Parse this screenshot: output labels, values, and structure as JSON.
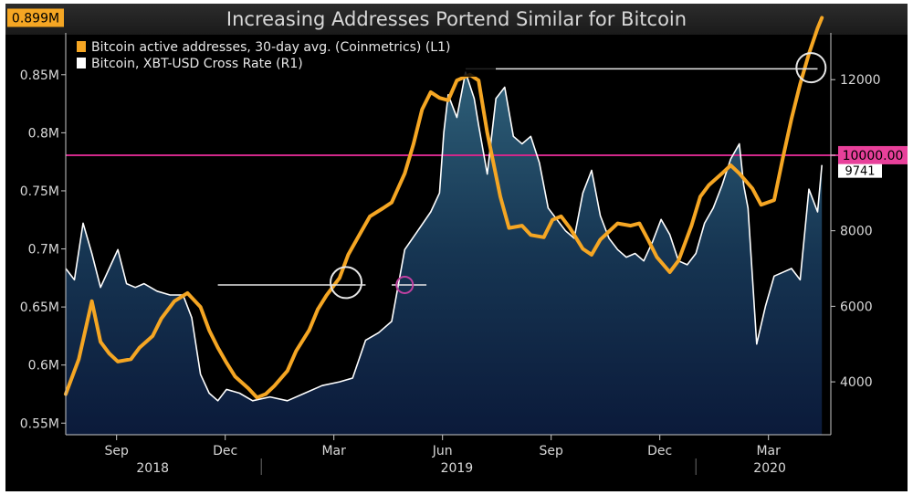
{
  "title": "Increasing Addresses Portend Similar for Bitcoin",
  "chart_data": {
    "type": "line",
    "title": "Increasing Addresses Portend Similar for Bitcoin",
    "x_range": [
      2018.55,
      2020.3
    ],
    "x_ticks": [
      {
        "label": "Sep",
        "x": 2018.667
      },
      {
        "label": "Dec",
        "x": 2018.917
      },
      {
        "label": "Mar",
        "x": 2019.167
      },
      {
        "label": "Jun",
        "x": 2019.417
      },
      {
        "label": "Sep",
        "x": 2019.667
      },
      {
        "label": "Dec",
        "x": 2019.917
      },
      {
        "label": "Mar",
        "x": 2020.167
      }
    ],
    "years": [
      {
        "label": "2018",
        "x": 2018.75
      },
      {
        "label": "2019",
        "x": 2019.45
      },
      {
        "label": "2020",
        "x": 2020.17
      }
    ],
    "left_axis": {
      "range": [
        0.54,
        0.875
      ],
      "ticks": [
        {
          "v": 0.55,
          "label": "0.55M"
        },
        {
          "v": 0.6,
          "label": "0.6M"
        },
        {
          "v": 0.65,
          "label": "0.65M"
        },
        {
          "v": 0.7,
          "label": "0.7M"
        },
        {
          "v": 0.75,
          "label": "0.75M"
        },
        {
          "v": 0.8,
          "label": "0.8M"
        },
        {
          "v": 0.85,
          "label": "0.85M"
        }
      ]
    },
    "right_axis": {
      "range": [
        2600,
        12900
      ],
      "ticks": [
        {
          "v": 4000,
          "label": "4000"
        },
        {
          "v": 6000,
          "label": "6000"
        },
        {
          "v": 8000,
          "label": "8000"
        },
        {
          "v": 10000,
          "label": "10000"
        },
        {
          "v": 12000,
          "label": "12000"
        }
      ]
    },
    "legend": [
      {
        "label": "Bitcoin active addresses, 30-day avg. (Coinmetrics) (L1)",
        "color": "#f5a623"
      },
      {
        "label": "Bitcoin, XBT-USD Cross Rate  (R1)",
        "color": "#ffffff"
      }
    ],
    "last_value_label": "0.899M",
    "reference_label": "10000.00",
    "price_last_label": "9741",
    "reference_value": 10000,
    "series": [
      {
        "name": "Bitcoin active addresses, 30-day avg. (Coinmetrics) (L1)",
        "axis": "left",
        "color": "#f5a623",
        "x": [
          2018.55,
          2018.58,
          2018.61,
          2018.63,
          2018.65,
          2018.67,
          2018.7,
          2018.72,
          2018.75,
          2018.77,
          2018.8,
          2018.83,
          2018.86,
          2018.88,
          2018.9,
          2018.92,
          2018.94,
          2018.97,
          2018.99,
          2019.01,
          2019.03,
          2019.06,
          2019.08,
          2019.11,
          2019.13,
          2019.15,
          2019.18,
          2019.2,
          2019.23,
          2019.25,
          2019.28,
          2019.3,
          2019.33,
          2019.35,
          2019.37,
          2019.39,
          2019.41,
          2019.43,
          2019.45,
          2019.48,
          2019.5,
          2019.52,
          2019.55,
          2019.57,
          2019.6,
          2019.62,
          2019.65,
          2019.67,
          2019.69,
          2019.71,
          2019.74,
          2019.76,
          2019.78,
          2019.8,
          2019.82,
          2019.85,
          2019.87,
          2019.89,
          2019.91,
          2019.94,
          2019.96,
          2019.99,
          2020.01,
          2020.03,
          2020.06,
          2020.08,
          2020.1,
          2020.13,
          2020.15,
          2020.18,
          2020.2,
          2020.22,
          2020.24,
          2020.26,
          2020.28,
          2020.29
        ],
        "values": [
          0.575,
          0.605,
          0.655,
          0.62,
          0.61,
          0.603,
          0.605,
          0.615,
          0.625,
          0.64,
          0.655,
          0.662,
          0.65,
          0.63,
          0.615,
          0.602,
          0.59,
          0.58,
          0.572,
          0.575,
          0.582,
          0.595,
          0.612,
          0.63,
          0.648,
          0.66,
          0.675,
          0.695,
          0.715,
          0.728,
          0.735,
          0.74,
          0.765,
          0.79,
          0.82,
          0.835,
          0.83,
          0.828,
          0.845,
          0.85,
          0.845,
          0.8,
          0.745,
          0.718,
          0.72,
          0.712,
          0.71,
          0.725,
          0.728,
          0.718,
          0.7,
          0.695,
          0.708,
          0.715,
          0.722,
          0.72,
          0.722,
          0.708,
          0.693,
          0.68,
          0.69,
          0.72,
          0.745,
          0.755,
          0.765,
          0.772,
          0.765,
          0.752,
          0.738,
          0.742,
          0.778,
          0.812,
          0.842,
          0.868,
          0.89,
          0.899
        ]
      },
      {
        "name": "Bitcoin, XBT-USD Cross Rate  (R1)",
        "axis": "right",
        "color": "#ffffff",
        "x": [
          2018.55,
          2018.57,
          2018.59,
          2018.61,
          2018.63,
          2018.65,
          2018.67,
          2018.69,
          2018.71,
          2018.73,
          2018.76,
          2018.79,
          2018.82,
          2018.84,
          2018.86,
          2018.88,
          2018.9,
          2018.92,
          2018.95,
          2018.98,
          2019.02,
          2019.06,
          2019.1,
          2019.14,
          2019.18,
          2019.21,
          2019.24,
          2019.27,
          2019.3,
          2019.33,
          2019.36,
          2019.39,
          2019.41,
          2019.42,
          2019.43,
          2019.45,
          2019.47,
          2019.49,
          2019.5,
          2019.52,
          2019.54,
          2019.56,
          2019.58,
          2019.6,
          2019.62,
          2019.64,
          2019.66,
          2019.68,
          2019.7,
          2019.72,
          2019.74,
          2019.76,
          2019.78,
          2019.8,
          2019.82,
          2019.84,
          2019.86,
          2019.88,
          2019.9,
          2019.92,
          2019.94,
          2019.96,
          2019.98,
          2020.0,
          2020.02,
          2020.04,
          2020.06,
          2020.08,
          2020.1,
          2020.11,
          2020.12,
          2020.14,
          2020.16,
          2020.18,
          2020.2,
          2020.22,
          2020.24,
          2020.26,
          2020.28,
          2020.29
        ],
        "values": [
          7000,
          6700,
          8200,
          7400,
          6500,
          7000,
          7500,
          6600,
          6500,
          6600,
          6400,
          6300,
          6300,
          5700,
          4200,
          3700,
          3500,
          3800,
          3700,
          3500,
          3600,
          3500,
          3700,
          3900,
          4000,
          4100,
          5100,
          5300,
          5600,
          7500,
          8000,
          8500,
          9000,
          10600,
          11600,
          11000,
          12200,
          11500,
          10800,
          9500,
          11500,
          11800,
          10500,
          10300,
          10500,
          9800,
          8600,
          8300,
          8000,
          7800,
          9000,
          9600,
          8400,
          7800,
          7500,
          7300,
          7400,
          7200,
          7700,
          8300,
          7900,
          7200,
          7100,
          7400,
          8200,
          8600,
          9200,
          9900,
          10300,
          9200,
          8600,
          5000,
          6000,
          6800,
          6900,
          7000,
          6700,
          9100,
          8500,
          9741
        ]
      }
    ],
    "annotations": [
      {
        "type": "hline",
        "axis": "left",
        "v": 0.669,
        "x0": 2018.9,
        "x1": 2019.24
      },
      {
        "type": "hline",
        "axis": "left",
        "v": 0.669,
        "x0": 2019.3,
        "x1": 2019.38
      },
      {
        "type": "hline",
        "axis": "left",
        "v": 0.855,
        "x0": 2019.47,
        "x1": 2020.28
      },
      {
        "type": "circle",
        "axis": "left",
        "x": 2019.195,
        "v": 0.671,
        "r": 17,
        "color": "#e6e6e6"
      },
      {
        "type": "circle",
        "axis": "left",
        "x": 2019.33,
        "v": 0.669,
        "r": 9,
        "color": "#c040a0"
      },
      {
        "type": "circle",
        "axis": "left",
        "x": 2020.265,
        "v": 0.856,
        "r": 16,
        "color": "#e6e6e6"
      }
    ]
  }
}
